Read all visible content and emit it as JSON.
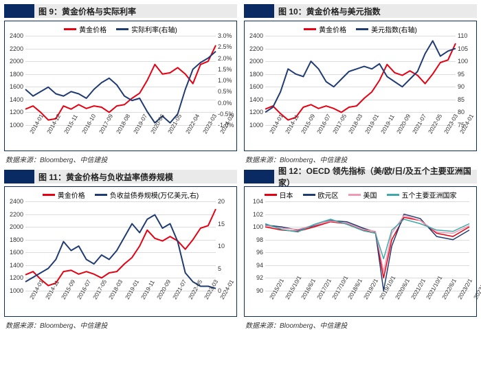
{
  "accent_color": "#0a2a63",
  "titlebar_bg": "#eaeaea",
  "source_text": "数据来源：Bloomberg、中信建投",
  "colors": {
    "red": "#e60012",
    "navy": "#1f3b73",
    "pink": "#ef9ab2",
    "teal": "#3da9a9",
    "grid": "#dcdcdc",
    "border": "#0a2a63"
  },
  "line_width_main": 2,
  "line_width_thin": 1.5,
  "panels": [
    {
      "id": "p9",
      "title": "图 9：黄金价格与实际利率",
      "legend": [
        {
          "label": "黄金价格",
          "color": "#e60012"
        },
        {
          "label": "实际利率(右轴)",
          "color": "#1f3b73"
        }
      ],
      "y_left": {
        "min": 1000,
        "max": 2400,
        "step": 200,
        "fmt": "int"
      },
      "y_right": {
        "min": -1.0,
        "max": 3.0,
        "step": 0.5,
        "fmt": "pct1"
      },
      "x_labels": [
        "2014-01",
        "2014-12",
        "2015-11",
        "2016-10",
        "2017-09",
        "2018-08",
        "2019-07",
        "2020-06",
        "2021-05",
        "2022-04",
        "2023-03",
        "2024-02"
      ],
      "series": [
        {
          "color": "#e60012",
          "axis": "left",
          "width": 2,
          "pts": [
            [
              0,
              1250
            ],
            [
              4,
              1300
            ],
            [
              8,
              1200
            ],
            [
              12,
              1080
            ],
            [
              16,
              1100
            ],
            [
              20,
              1300
            ],
            [
              24,
              1250
            ],
            [
              28,
              1320
            ],
            [
              32,
              1260
            ],
            [
              36,
              1300
            ],
            [
              40,
              1280
            ],
            [
              44,
              1200
            ],
            [
              48,
              1300
            ],
            [
              52,
              1320
            ],
            [
              56,
              1420
            ],
            [
              60,
              1500
            ],
            [
              64,
              1700
            ],
            [
              68,
              1950
            ],
            [
              72,
              1800
            ],
            [
              76,
              1820
            ],
            [
              80,
              1900
            ],
            [
              84,
              1800
            ],
            [
              88,
              1650
            ],
            [
              92,
              1950
            ],
            [
              96,
              2000
            ],
            [
              100,
              2250
            ]
          ]
        },
        {
          "color": "#1f3b73",
          "axis": "right",
          "width": 2,
          "pts": [
            [
              0,
              0.6
            ],
            [
              4,
              0.3
            ],
            [
              8,
              0.5
            ],
            [
              12,
              0.7
            ],
            [
              16,
              0.4
            ],
            [
              20,
              0.3
            ],
            [
              24,
              0.5
            ],
            [
              28,
              0.4
            ],
            [
              32,
              0.2
            ],
            [
              36,
              0.6
            ],
            [
              40,
              0.9
            ],
            [
              44,
              1.1
            ],
            [
              48,
              0.8
            ],
            [
              52,
              0.3
            ],
            [
              56,
              0.1
            ],
            [
              60,
              0.2
            ],
            [
              64,
              -0.4
            ],
            [
              68,
              -0.9
            ],
            [
              72,
              -0.6
            ],
            [
              76,
              -0.9
            ],
            [
              80,
              -0.5
            ],
            [
              84,
              0.6
            ],
            [
              88,
              1.5
            ],
            [
              92,
              1.8
            ],
            [
              96,
              2.0
            ],
            [
              100,
              2.3
            ]
          ]
        }
      ]
    },
    {
      "id": "p10",
      "title": "图 10：黄金价格与美元指数",
      "legend": [
        {
          "label": "黄金价格",
          "color": "#e60012"
        },
        {
          "label": "美元指数(右轴)",
          "color": "#1f3b73"
        }
      ],
      "y_left": {
        "min": 1000,
        "max": 2400,
        "step": 200,
        "fmt": "int"
      },
      "y_right": {
        "min": 75,
        "max": 110,
        "step": 5,
        "fmt": "int"
      },
      "x_labels": [
        "2014-01",
        "2014-11",
        "2015-09",
        "2016-07",
        "2017-05",
        "2018-03",
        "2019-01",
        "2019-11",
        "2020-09",
        "2021-07",
        "2022-05",
        "2023-03",
        "2024-01"
      ],
      "series": [
        {
          "color": "#e60012",
          "axis": "left",
          "width": 2,
          "pts": [
            [
              0,
              1250
            ],
            [
              4,
              1300
            ],
            [
              8,
              1180
            ],
            [
              12,
              1080
            ],
            [
              16,
              1120
            ],
            [
              20,
              1280
            ],
            [
              24,
              1320
            ],
            [
              28,
              1260
            ],
            [
              32,
              1300
            ],
            [
              36,
              1260
            ],
            [
              40,
              1200
            ],
            [
              44,
              1280
            ],
            [
              48,
              1300
            ],
            [
              52,
              1420
            ],
            [
              56,
              1520
            ],
            [
              60,
              1700
            ],
            [
              64,
              1950
            ],
            [
              68,
              1820
            ],
            [
              72,
              1780
            ],
            [
              76,
              1850
            ],
            [
              80,
              1780
            ],
            [
              84,
              1650
            ],
            [
              88,
              1800
            ],
            [
              92,
              1980
            ],
            [
              96,
              2020
            ],
            [
              100,
              2280
            ]
          ]
        },
        {
          "color": "#1f3b73",
          "axis": "right",
          "width": 2,
          "pts": [
            [
              0,
              80
            ],
            [
              4,
              82
            ],
            [
              8,
              88
            ],
            [
              12,
              97
            ],
            [
              16,
              95
            ],
            [
              20,
              94
            ],
            [
              24,
              100
            ],
            [
              28,
              97
            ],
            [
              32,
              92
            ],
            [
              36,
              90
            ],
            [
              40,
              93
            ],
            [
              44,
              96
            ],
            [
              48,
              97
            ],
            [
              52,
              98
            ],
            [
              56,
              97
            ],
            [
              60,
              99
            ],
            [
              64,
              94
            ],
            [
              68,
              92
            ],
            [
              72,
              90
            ],
            [
              76,
              93
            ],
            [
              80,
              96
            ],
            [
              84,
              103
            ],
            [
              88,
              108
            ],
            [
              92,
              102
            ],
            [
              96,
              104
            ],
            [
              100,
              105
            ]
          ]
        }
      ]
    },
    {
      "id": "p11",
      "title": "图 11：黄金价格与负收益率债券规模",
      "legend": [
        {
          "label": "黄金价格",
          "color": "#e60012"
        },
        {
          "label": "负收益债券规模(万亿美元,右)",
          "color": "#1f3b73"
        }
      ],
      "y_left": {
        "min": 1000,
        "max": 2400,
        "step": 200,
        "fmt": "int"
      },
      "y_right": {
        "min": 0,
        "max": 20,
        "step": 5,
        "fmt": "int"
      },
      "x_labels": [
        "2014-01",
        "2014-11",
        "2015-09",
        "2016-07",
        "2017-05",
        "2018-03",
        "2019-01",
        "2019-11",
        "2020-09",
        "2021-07",
        "2022-05",
        "2023-03",
        "2024-01"
      ],
      "series": [
        {
          "color": "#e60012",
          "axis": "left",
          "width": 2,
          "pts": [
            [
              0,
              1250
            ],
            [
              4,
              1300
            ],
            [
              8,
              1180
            ],
            [
              12,
              1080
            ],
            [
              16,
              1120
            ],
            [
              20,
              1300
            ],
            [
              24,
              1320
            ],
            [
              28,
              1260
            ],
            [
              32,
              1300
            ],
            [
              36,
              1260
            ],
            [
              40,
              1200
            ],
            [
              44,
              1280
            ],
            [
              48,
              1300
            ],
            [
              52,
              1420
            ],
            [
              56,
              1520
            ],
            [
              60,
              1700
            ],
            [
              64,
              1950
            ],
            [
              68,
              1820
            ],
            [
              72,
              1780
            ],
            [
              76,
              1850
            ],
            [
              80,
              1780
            ],
            [
              84,
              1650
            ],
            [
              88,
              1800
            ],
            [
              92,
              1980
            ],
            [
              96,
              2020
            ],
            [
              100,
              2280
            ]
          ]
        },
        {
          "color": "#1f3b73",
          "axis": "right",
          "width": 2,
          "pts": [
            [
              0,
              2
            ],
            [
              4,
              3
            ],
            [
              8,
              4
            ],
            [
              12,
              5
            ],
            [
              16,
              7
            ],
            [
              20,
              11
            ],
            [
              24,
              9
            ],
            [
              28,
              10
            ],
            [
              32,
              7
            ],
            [
              36,
              6
            ],
            [
              40,
              8
            ],
            [
              44,
              7
            ],
            [
              48,
              9
            ],
            [
              52,
              12
            ],
            [
              56,
              15
            ],
            [
              60,
              13
            ],
            [
              64,
              16
            ],
            [
              68,
              17
            ],
            [
              72,
              14
            ],
            [
              76,
              15
            ],
            [
              80,
              11
            ],
            [
              84,
              4
            ],
            [
              88,
              2
            ],
            [
              92,
              1
            ],
            [
              96,
              1
            ],
            [
              100,
              0.5
            ]
          ]
        }
      ]
    },
    {
      "id": "p12",
      "title": "图 12：OECD 领先指标（美/欧/日/及五个主要亚洲国家）",
      "legend": [
        {
          "label": "日本",
          "color": "#e60012"
        },
        {
          "label": "欧元区",
          "color": "#1f3b73"
        },
        {
          "label": "美国",
          "color": "#ef9ab2"
        },
        {
          "label": "五个主要亚洲国家",
          "color": "#3da9a9"
        }
      ],
      "y_left": {
        "min": 90,
        "max": 104,
        "step": 2,
        "fmt": "int"
      },
      "y_right": null,
      "x_labels": [
        "2015/2/1",
        "2015/10/1",
        "2016/6/1",
        "2017/2/1",
        "2017/10/1",
        "2018/6/1",
        "2019/2/1",
        "2019/10/1",
        "2020/6/1",
        "2021/2/1",
        "2021/10/1",
        "2022/6/1",
        "2023/2/1",
        "2023/10/1"
      ],
      "series": [
        {
          "color": "#e60012",
          "axis": "left",
          "width": 1.5,
          "pts": [
            [
              0,
              100
            ],
            [
              8,
              99.5
            ],
            [
              16,
              99.3
            ],
            [
              24,
              100
            ],
            [
              32,
              100.8
            ],
            [
              40,
              100.5
            ],
            [
              48,
              99.5
            ],
            [
              54,
              99
            ],
            [
              58,
              92
            ],
            [
              62,
              98
            ],
            [
              68,
              101.5
            ],
            [
              76,
              101
            ],
            [
              84,
              99
            ],
            [
              92,
              98.5
            ],
            [
              100,
              100
            ]
          ]
        },
        {
          "color": "#1f3b73",
          "axis": "left",
          "width": 1.5,
          "pts": [
            [
              0,
              100.3
            ],
            [
              8,
              100
            ],
            [
              16,
              99.5
            ],
            [
              24,
              100.2
            ],
            [
              32,
              101
            ],
            [
              40,
              100.8
            ],
            [
              48,
              99.8
            ],
            [
              54,
              99.2
            ],
            [
              58,
              90
            ],
            [
              62,
              97
            ],
            [
              68,
              102
            ],
            [
              76,
              101.3
            ],
            [
              84,
              98.5
            ],
            [
              92,
              98
            ],
            [
              100,
              99.5
            ]
          ]
        },
        {
          "color": "#ef9ab2",
          "axis": "left",
          "width": 1.5,
          "pts": [
            [
              0,
              100.2
            ],
            [
              8,
              99.8
            ],
            [
              16,
              99.6
            ],
            [
              24,
              100.3
            ],
            [
              32,
              100.9
            ],
            [
              40,
              100.6
            ],
            [
              48,
              99.6
            ],
            [
              54,
              99.3
            ],
            [
              58,
              93
            ],
            [
              62,
              99
            ],
            [
              68,
              101.8
            ],
            [
              76,
              101
            ],
            [
              84,
              99.2
            ],
            [
              92,
              99
            ],
            [
              100,
              100.2
            ]
          ]
        },
        {
          "color": "#3da9a9",
          "axis": "left",
          "width": 1.5,
          "pts": [
            [
              0,
              100.5
            ],
            [
              8,
              99.6
            ],
            [
              16,
              99.2
            ],
            [
              24,
              100.4
            ],
            [
              32,
              101.2
            ],
            [
              40,
              100.4
            ],
            [
              48,
              99.4
            ],
            [
              54,
              99
            ],
            [
              58,
              95
            ],
            [
              62,
              99.5
            ],
            [
              68,
              101.2
            ],
            [
              76,
              100.5
            ],
            [
              84,
              99.5
            ],
            [
              92,
              99.3
            ],
            [
              100,
              100.5
            ]
          ]
        }
      ]
    }
  ]
}
